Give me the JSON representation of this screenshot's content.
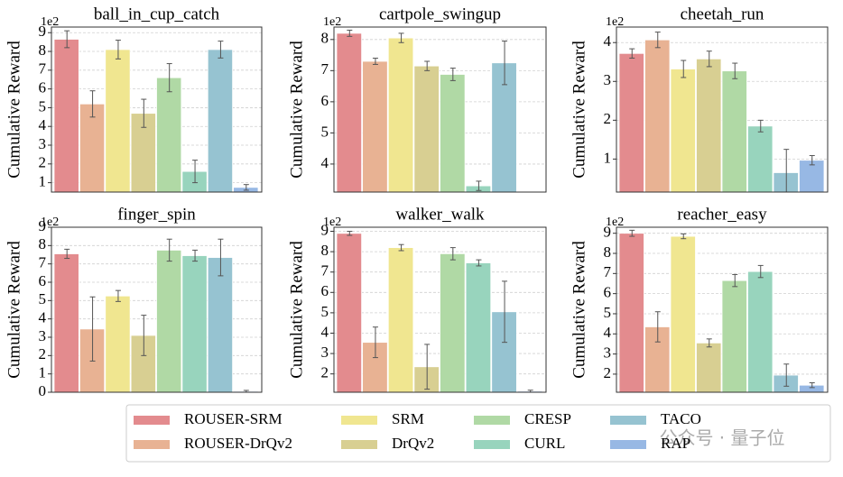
{
  "chart_data": [
    {
      "type": "bar",
      "title": "ball_in_cup_catch",
      "ylabel": "Cumulative Reward",
      "offset_label": "1e2",
      "values": [
        8.65,
        5.2,
        8.1,
        4.7,
        6.6,
        1.6,
        8.1,
        0.75
      ],
      "errors": [
        0.45,
        0.7,
        0.5,
        0.75,
        0.75,
        0.6,
        0.45,
        0.15
      ],
      "ylim": [
        0.5,
        9.3
      ],
      "yticks": [
        1,
        2,
        3,
        4,
        5,
        6,
        7,
        8,
        9
      ],
      "grid": true
    },
    {
      "type": "bar",
      "title": "cartpole_swingup",
      "ylabel": "Cumulative Reward",
      "offset_label": "1e2",
      "values": [
        8.2,
        7.3,
        8.05,
        7.15,
        6.88,
        3.3,
        7.25,
        null
      ],
      "errors": [
        0.1,
        0.1,
        0.15,
        0.15,
        0.2,
        0.15,
        0.7,
        null
      ],
      "ylim": [
        3.1,
        8.4
      ],
      "yticks": [
        4,
        5,
        6,
        7,
        8
      ],
      "grid": true
    },
    {
      "type": "bar",
      "title": "cheetah_run",
      "ylabel": "Cumulative Reward",
      "offset_label": "1e2",
      "values": [
        3.72,
        4.07,
        3.32,
        3.58,
        3.27,
        1.85,
        0.65,
        0.97
      ],
      "errors": [
        0.12,
        0.2,
        0.22,
        0.2,
        0.2,
        0.15,
        0.6,
        0.12
      ],
      "ylim": [
        0.15,
        4.4
      ],
      "yticks": [
        1,
        2,
        3,
        4
      ],
      "grid": true
    },
    {
      "type": "bar",
      "title": "finger_spin",
      "ylabel": "Cumulative Reward",
      "offset_label": "1e2",
      "values": [
        7.55,
        3.45,
        5.25,
        3.1,
        7.75,
        7.45,
        7.35,
        0.05
      ],
      "errors": [
        0.25,
        1.75,
        0.3,
        1.1,
        0.6,
        0.3,
        1.0,
        0.05
      ],
      "ylim": [
        0,
        9
      ],
      "yticks": [
        0,
        1,
        2,
        3,
        4,
        5,
        6,
        7,
        8,
        9
      ],
      "grid": true
    },
    {
      "type": "bar",
      "title": "walker_walk",
      "ylabel": "Cumulative Reward",
      "offset_label": "1e2",
      "values": [
        8.9,
        3.55,
        8.2,
        2.35,
        7.9,
        7.45,
        5.05,
        1.15
      ],
      "errors": [
        0.1,
        0.75,
        0.15,
        1.1,
        0.3,
        0.15,
        1.5,
        0.05
      ],
      "ylim": [
        1.1,
        9.2
      ],
      "yticks": [
        2,
        3,
        4,
        5,
        6,
        7,
        8,
        9
      ],
      "grid": true
    },
    {
      "type": "bar",
      "title": "reacher_easy",
      "ylabel": "Cumulative Reward",
      "offset_label": "1e2",
      "values": [
        9.0,
        4.35,
        8.85,
        3.55,
        6.65,
        7.1,
        1.95,
        1.45
      ],
      "errors": [
        0.15,
        0.75,
        0.12,
        0.2,
        0.3,
        0.3,
        0.55,
        0.12
      ],
      "ylim": [
        1.1,
        9.3
      ],
      "yticks": [
        2,
        3,
        4,
        5,
        6,
        7,
        8,
        9
      ],
      "grid": true
    }
  ],
  "legend": {
    "series": [
      {
        "name": "ROUSER-SRM",
        "color": "#e38b8e"
      },
      {
        "name": "ROUSER-DrQv2",
        "color": "#e8b293"
      },
      {
        "name": "SRM",
        "color": "#f0e690"
      },
      {
        "name": "DrQv2",
        "color": "#d8cf92"
      },
      {
        "name": "CRESP",
        "color": "#b0d9a5"
      },
      {
        "name": "CURL",
        "color": "#98d4bd"
      },
      {
        "name": "TACO",
        "color": "#96c3d1"
      },
      {
        "name": "RAP",
        "color": "#97b8e4"
      }
    ]
  },
  "watermark": "公众号 · 量子位"
}
